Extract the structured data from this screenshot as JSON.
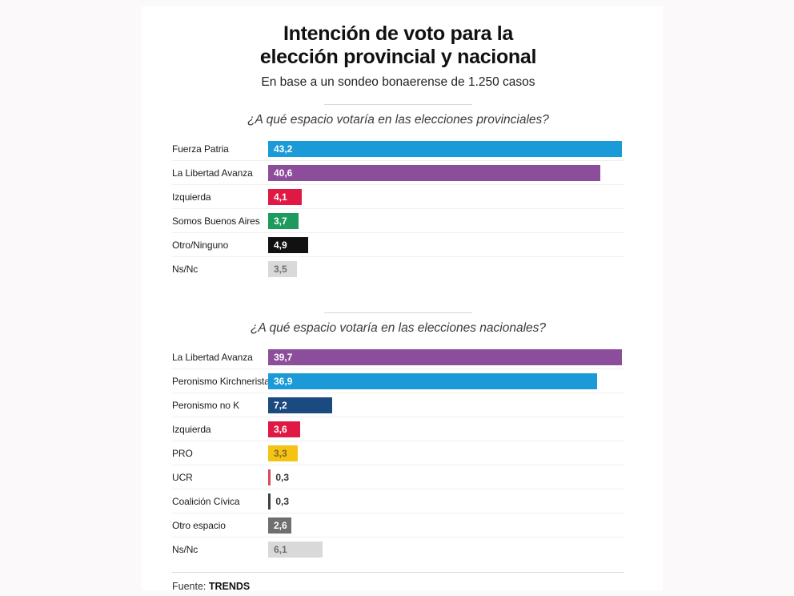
{
  "page": {
    "background": "#fcf9fa",
    "card_background": "#ffffff"
  },
  "header": {
    "title_line1": "Intención de voto para la",
    "title_line2": "elección provincial y nacional",
    "subtitle": "En base a un sondeo bonaerense de 1.250 casos"
  },
  "footer": {
    "prefix": "Fuente:",
    "source": "TRENDS"
  },
  "chart_data": [
    {
      "type": "bar",
      "orientation": "horizontal",
      "title": "¿A qué espacio votaría en las elecciones provinciales?",
      "categories": [
        "Fuerza Patria",
        "La Libertad Avanza",
        "Izquierda",
        "Somos Buenos Aires",
        "Otro/Ninguno",
        "Ns/Nc"
      ],
      "values": [
        43.2,
        40.6,
        4.1,
        3.7,
        4.9,
        3.5
      ],
      "value_labels": [
        "43,2",
        "40,6",
        "4,1",
        "3,7",
        "4,9",
        "3,5"
      ],
      "bar_colors": [
        "#1a9ad6",
        "#8c4e9b",
        "#e01944",
        "#1d9a5c",
        "#111111",
        "#d9d9d9"
      ],
      "value_label_colors": [
        "#ffffff",
        "#ffffff",
        "#ffffff",
        "#ffffff",
        "#ffffff",
        "#6f6f6f"
      ],
      "label_inside": [
        true,
        true,
        true,
        true,
        true,
        true
      ],
      "xlim": [
        0,
        43.5
      ],
      "grid": false,
      "legend": "none"
    },
    {
      "type": "bar",
      "orientation": "horizontal",
      "title": "¿A qué espacio votaría en las elecciones nacionales?",
      "categories": [
        "La Libertad Avanza",
        "Peronismo Kirchnerista",
        "Peronismo no K",
        "Izquierda",
        "PRO",
        "UCR",
        "Coalición Cívica",
        "Otro espacio",
        "Ns/Nc"
      ],
      "values": [
        39.7,
        36.9,
        7.2,
        3.6,
        3.3,
        0.3,
        0.3,
        2.6,
        6.1
      ],
      "value_labels": [
        "39,7",
        "36,9",
        "7,2",
        "3,6",
        "3,3",
        "0,3",
        "0,3",
        "2,6",
        "6,1"
      ],
      "bar_colors": [
        "#8c4e9b",
        "#1a9ad6",
        "#1b4a80",
        "#e01944",
        "#f5c313",
        "#d94a5a",
        "#3f3f3f",
        "#6f6f6f",
        "#d9d9d9"
      ],
      "value_label_colors": [
        "#ffffff",
        "#ffffff",
        "#ffffff",
        "#ffffff",
        "#7d6b1e",
        "#333333",
        "#333333",
        "#ffffff",
        "#6f6f6f"
      ],
      "label_inside": [
        true,
        true,
        true,
        true,
        true,
        false,
        false,
        true,
        true
      ],
      "xlim": [
        0,
        40
      ],
      "grid": false,
      "legend": "none"
    }
  ]
}
